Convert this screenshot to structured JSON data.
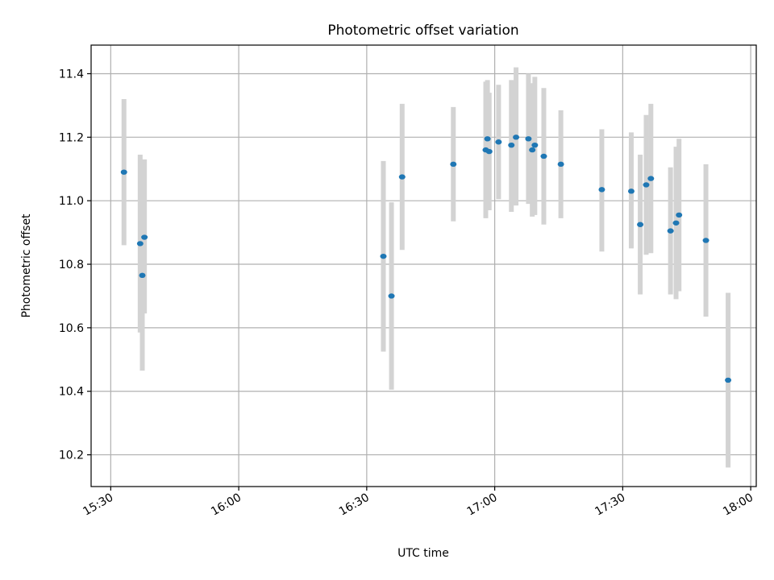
{
  "chart_data": {
    "type": "scatter",
    "title": "Photometric offset variation",
    "xlabel": "UTC time",
    "ylabel": "Photometric offset",
    "xlim": [
      "15:25:24",
      "18:01:18"
    ],
    "ylim": [
      10.1,
      11.49
    ],
    "xticks": [
      "15:30",
      "16:00",
      "16:30",
      "17:00",
      "17:30",
      "18:00"
    ],
    "yticks": [
      10.2,
      10.4,
      10.6,
      10.8,
      11.0,
      11.2,
      11.4
    ],
    "grid": true,
    "errorbar_color": "#d3d3d3",
    "marker_color": "#1f77b4",
    "points": [
      {
        "x": "15:33:06",
        "y": 11.09,
        "ylo": 10.86,
        "yhi": 11.32
      },
      {
        "x": "15:36:54",
        "y": 10.865,
        "ylo": 10.585,
        "yhi": 11.145
      },
      {
        "x": "15:37:24",
        "y": 10.765,
        "ylo": 10.465,
        "yhi": 11.07
      },
      {
        "x": "15:37:54",
        "y": 10.885,
        "ylo": 10.645,
        "yhi": 11.13
      },
      {
        "x": "16:33:54",
        "y": 10.825,
        "ylo": 10.525,
        "yhi": 11.125
      },
      {
        "x": "16:35:48",
        "y": 10.7,
        "ylo": 10.405,
        "yhi": 10.995
      },
      {
        "x": "16:38:18",
        "y": 11.075,
        "ylo": 10.845,
        "yhi": 11.305
      },
      {
        "x": "16:50:18",
        "y": 11.115,
        "ylo": 10.935,
        "yhi": 11.295
      },
      {
        "x": "16:57:54",
        "y": 11.16,
        "ylo": 10.945,
        "yhi": 11.375
      },
      {
        "x": "16:58:18",
        "y": 11.195,
        "ylo": 11.01,
        "yhi": 11.38
      },
      {
        "x": "16:58:42",
        "y": 11.155,
        "ylo": 10.97,
        "yhi": 11.34
      },
      {
        "x": "17:00:54",
        "y": 11.185,
        "ylo": 11.005,
        "yhi": 11.365
      },
      {
        "x": "17:03:54",
        "y": 11.175,
        "ylo": 10.965,
        "yhi": 11.38
      },
      {
        "x": "17:05:00",
        "y": 11.2,
        "ylo": 10.985,
        "yhi": 11.42
      },
      {
        "x": "17:07:54",
        "y": 11.195,
        "ylo": 10.99,
        "yhi": 11.4
      },
      {
        "x": "17:08:48",
        "y": 11.16,
        "ylo": 10.95,
        "yhi": 11.37
      },
      {
        "x": "17:09:24",
        "y": 11.175,
        "ylo": 10.955,
        "yhi": 11.39
      },
      {
        "x": "17:11:30",
        "y": 11.14,
        "ylo": 10.925,
        "yhi": 11.355
      },
      {
        "x": "17:15:30",
        "y": 11.115,
        "ylo": 10.945,
        "yhi": 11.285
      },
      {
        "x": "17:25:06",
        "y": 11.035,
        "ylo": 10.84,
        "yhi": 11.225
      },
      {
        "x": "17:32:00",
        "y": 11.03,
        "ylo": 10.85,
        "yhi": 11.215
      },
      {
        "x": "17:34:06",
        "y": 10.925,
        "ylo": 10.705,
        "yhi": 11.145
      },
      {
        "x": "17:35:30",
        "y": 11.05,
        "ylo": 10.83,
        "yhi": 11.27
      },
      {
        "x": "17:36:36",
        "y": 11.07,
        "ylo": 10.835,
        "yhi": 11.305
      },
      {
        "x": "17:41:12",
        "y": 10.905,
        "ylo": 10.705,
        "yhi": 11.105
      },
      {
        "x": "17:42:30",
        "y": 10.93,
        "ylo": 10.69,
        "yhi": 11.17
      },
      {
        "x": "17:43:12",
        "y": 10.955,
        "ylo": 10.715,
        "yhi": 11.195
      },
      {
        "x": "17:49:30",
        "y": 10.875,
        "ylo": 10.635,
        "yhi": 11.115
      },
      {
        "x": "17:54:42",
        "y": 10.435,
        "ylo": 10.16,
        "yhi": 10.71
      }
    ]
  }
}
